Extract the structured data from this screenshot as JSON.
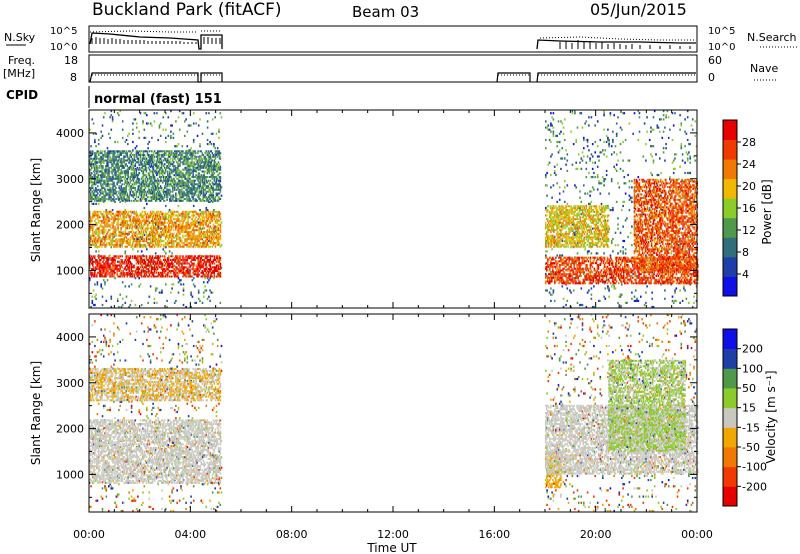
{
  "header": {
    "station": "Buckland Park (fitACF)",
    "beam": "Beam 03",
    "date": "05/Jun/2015"
  },
  "strips": {
    "nsky_label": "N.Sky",
    "nsky_ticks": [
      "10^5",
      "10^0"
    ],
    "nsearch_label": "N.Search",
    "nsearch_ticks": [
      "10^5",
      "10^0"
    ],
    "freq_label": "Freq.",
    "freq_unit": "[MHz]",
    "freq_ticks": [
      "18",
      "8"
    ],
    "nave_label": "Nave",
    "nave_ticks": [
      "60",
      "0"
    ],
    "cpid_label": "CPID",
    "cpid_text": "normal (fast) 151"
  },
  "colors": {
    "power_scale": [
      "#1010e6",
      "#1f3fa8",
      "#2f6e7a",
      "#4f9a4a",
      "#8ccc2a",
      "#f0b800",
      "#f07a00",
      "#f03a00",
      "#e60000"
    ],
    "velocity_scale": [
      "#e60000",
      "#f03a00",
      "#f07a00",
      "#f0a800",
      "#c8c8c0",
      "#8ccc2a",
      "#4f9a4a",
      "#1f3fa8",
      "#1010e6"
    ]
  },
  "chart_data": [
    {
      "type": "heatmap",
      "panel": "power",
      "ylabel": "Slant Range [km]",
      "ylim": [
        180,
        4500
      ],
      "xlim": [
        "00:00",
        "24:00"
      ],
      "xticks": [
        "00:00",
        "04:00",
        "08:00",
        "12:00",
        "16:00",
        "20:00",
        "00:00"
      ],
      "yticks": [
        "1000",
        "2000",
        "3000",
        "4000"
      ],
      "colorbar": {
        "label": "Power [dB]",
        "ticks": [
          "28",
          "24",
          "20",
          "16",
          "12",
          "8",
          "4"
        ],
        "range": [
          0,
          30
        ]
      },
      "data_intervals_ut_hours": [
        [
          0.0,
          5.2
        ],
        [
          18.0,
          24.0
        ]
      ],
      "features": [
        {
          "range_km": [
            850,
            1300
          ],
          "time_hours": [
            0.0,
            5.2
          ],
          "power_db": 27
        },
        {
          "range_km": [
            1500,
            2300
          ],
          "time_hours": [
            0.0,
            5.2
          ],
          "power_db": 20
        },
        {
          "range_km": [
            2500,
            3600
          ],
          "time_hours": [
            0.0,
            5.2
          ],
          "power_db": 10
        },
        {
          "range_km": [
            700,
            1300
          ],
          "time_hours": [
            18.0,
            24.0
          ],
          "power_db": 25
        },
        {
          "range_km": [
            1500,
            2400
          ],
          "time_hours": [
            18.0,
            20.5
          ],
          "power_db": 18
        },
        {
          "range_km": [
            1000,
            3000
          ],
          "time_hours": [
            21.5,
            24.0
          ],
          "power_db": 24
        }
      ]
    },
    {
      "type": "heatmap",
      "panel": "velocity",
      "ylabel": "Slant Range [km]",
      "xlabel": "Time UT",
      "ylim": [
        180,
        4500
      ],
      "xlim": [
        "00:00",
        "24:00"
      ],
      "xticks": [
        "00:00",
        "04:00",
        "08:00",
        "12:00",
        "16:00",
        "20:00",
        "00:00"
      ],
      "yticks": [
        "1000",
        "2000",
        "3000",
        "4000"
      ],
      "colorbar": {
        "label": "Velocity [m s⁻¹]",
        "ticks": [
          "200",
          "100",
          "50",
          "15",
          "-15",
          "-50",
          "-100",
          "-200"
        ],
        "range": [
          -300,
          300
        ]
      },
      "data_intervals_ut_hours": [
        [
          0.0,
          5.2
        ],
        [
          18.0,
          24.0
        ]
      ],
      "features": [
        {
          "range_km": [
            800,
            2200
          ],
          "time_hours": [
            0.0,
            5.2
          ],
          "velocity_ms": 0
        },
        {
          "range_km": [
            2600,
            3300
          ],
          "time_hours": [
            0.0,
            5.2
          ],
          "velocity_ms": -30
        },
        {
          "range_km": [
            700,
            1500
          ],
          "time_hours": [
            18.0,
            18.6
          ],
          "velocity_ms": -60
        },
        {
          "range_km": [
            1000,
            2500
          ],
          "time_hours": [
            18.0,
            24.0
          ],
          "velocity_ms": 0
        },
        {
          "range_km": [
            1500,
            3500
          ],
          "time_hours": [
            20.5,
            23.5
          ],
          "velocity_ms": 40
        }
      ]
    }
  ]
}
